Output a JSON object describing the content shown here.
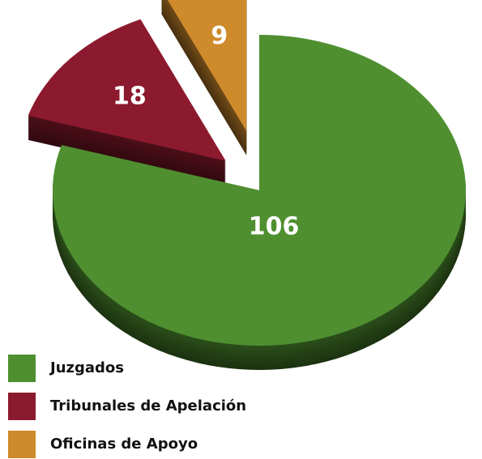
{
  "chart_data": {
    "type": "pie",
    "categories": [
      "Juzgados",
      "Tribunales de Apelación",
      "Oficinas de Apoyo"
    ],
    "values": [
      106,
      18,
      9
    ],
    "colors": [
      "#4f8f30",
      "#8c1a2e",
      "#cf8a2c"
    ],
    "legend": "bottom-left"
  }
}
